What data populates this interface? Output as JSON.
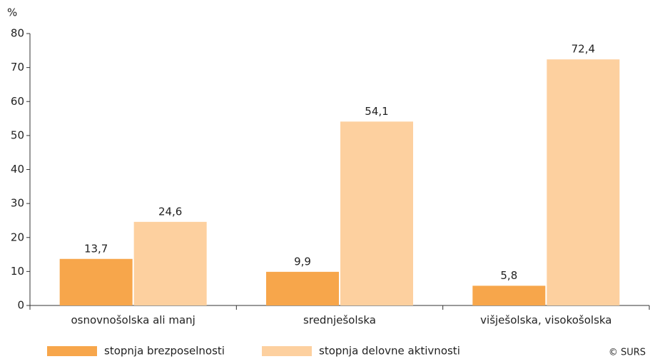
{
  "chart_data": {
    "type": "bar",
    "y_axis_label": "%",
    "categories": [
      "osnovnošolska ali manj",
      "srednješolska",
      "višješolska, visokošolska"
    ],
    "series": [
      {
        "name": "stopnja brezposelnosti",
        "color": "#f7a64b",
        "values": [
          13.7,
          9.9,
          5.8
        ],
        "value_labels": [
          "13,7",
          "9,9",
          "5,8"
        ]
      },
      {
        "name": "stopnja delovne aktivnosti",
        "color": "#fdd09f",
        "values": [
          24.6,
          54.1,
          72.4
        ],
        "value_labels": [
          "24,6",
          "54,1",
          "72,4"
        ]
      }
    ],
    "ylim": [
      0,
      80
    ],
    "yticks": [
      0,
      10,
      20,
      30,
      40,
      50,
      60,
      70,
      80
    ],
    "grid": false,
    "legend": "bottom",
    "source": "© SURS"
  }
}
